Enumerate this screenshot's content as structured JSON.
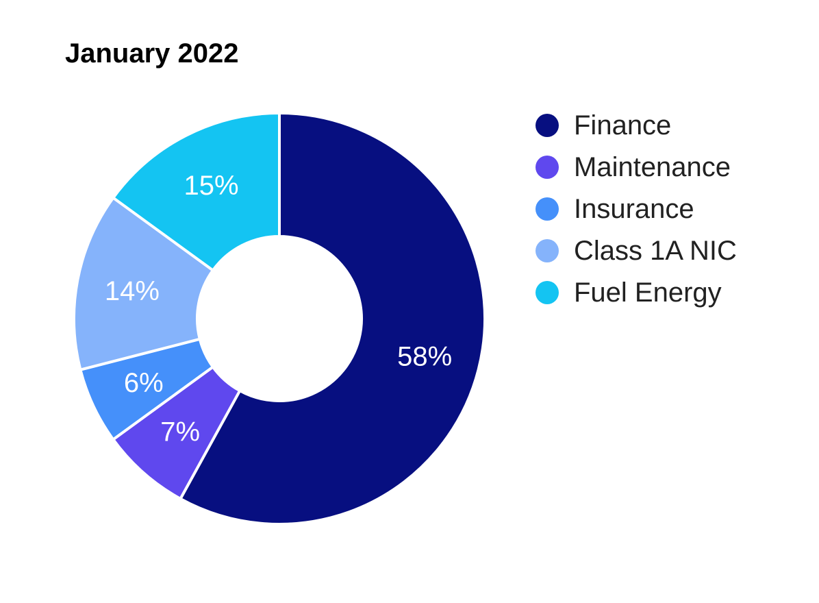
{
  "title": "January 2022",
  "chart_data": {
    "type": "pie",
    "subtype": "donut",
    "title": "January 2022",
    "categories": [
      "Finance",
      "Maintenance",
      "Insurance",
      "Class 1A NIC",
      "Fuel Energy"
    ],
    "values": [
      58,
      7,
      6,
      14,
      15
    ],
    "slice_labels": [
      "58%",
      "7%",
      "6%",
      "14%",
      "15%"
    ],
    "colors": [
      "#070F80",
      "#5F48EE",
      "#4590FA",
      "#85B3FB",
      "#14C4F2"
    ],
    "unit": "%",
    "start_angle": "top",
    "direction": "clockwise",
    "inner_radius_ratio": 0.4,
    "slice_border_color": "#FFFFFF",
    "slice_label_color": "#FFFFFF",
    "title_color": "#000000",
    "legend": {
      "position": "right",
      "text_color": "#212121",
      "entries": [
        "Finance",
        "Maintenance",
        "Insurance",
        "Class 1A NIC",
        "Fuel Energy"
      ]
    }
  }
}
